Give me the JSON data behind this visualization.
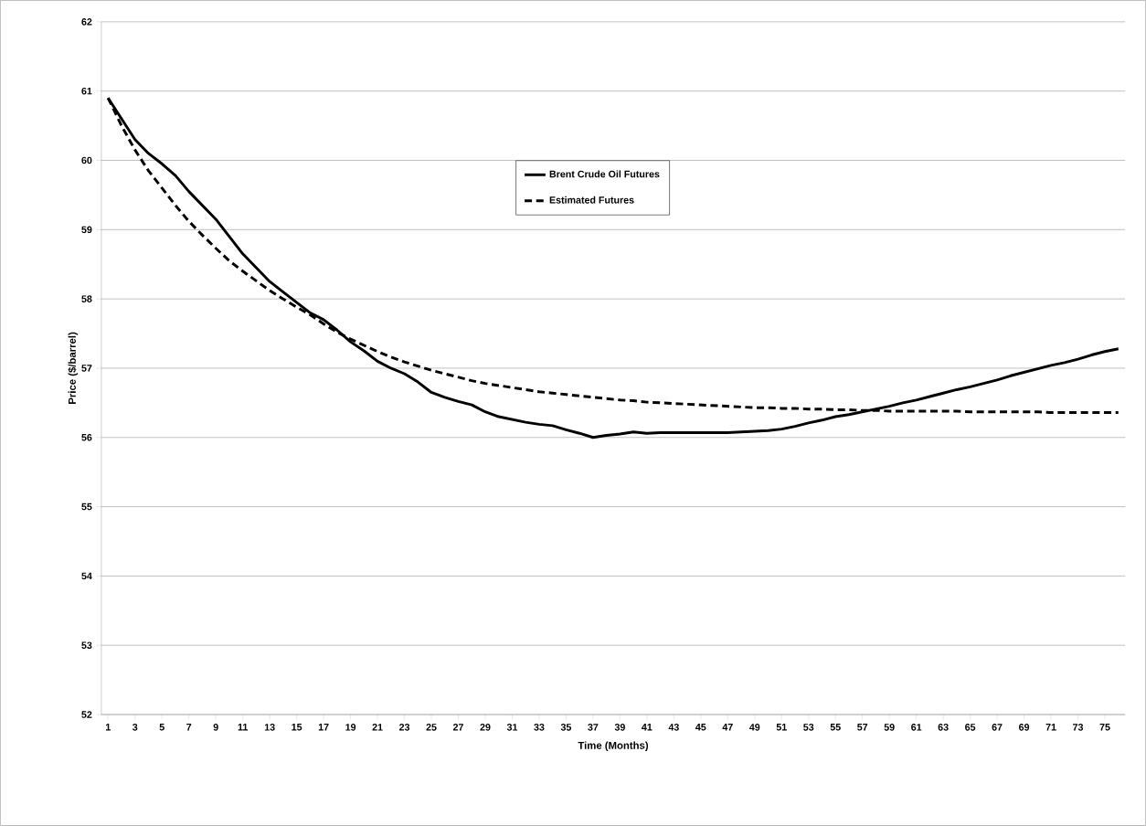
{
  "chart_data": {
    "type": "line",
    "xlabel": "Time (Months)",
    "ylabel": "Price ($/barrel)",
    "x": [
      1,
      2,
      3,
      4,
      5,
      6,
      7,
      8,
      9,
      10,
      11,
      12,
      13,
      14,
      15,
      16,
      17,
      18,
      19,
      20,
      21,
      22,
      23,
      24,
      25,
      26,
      27,
      28,
      29,
      30,
      31,
      32,
      33,
      34,
      35,
      36,
      37,
      38,
      39,
      40,
      41,
      42,
      43,
      44,
      45,
      46,
      47,
      48,
      49,
      50,
      51,
      52,
      53,
      54,
      55,
      56,
      57,
      58,
      59,
      60,
      61,
      62,
      63,
      64,
      65,
      66,
      67,
      68,
      69,
      70,
      71,
      72,
      73,
      74,
      75,
      76
    ],
    "xlim": [
      0.5,
      76.5
    ],
    "xticks": [
      1,
      3,
      5,
      7,
      9,
      11,
      13,
      15,
      17,
      19,
      21,
      23,
      25,
      27,
      29,
      31,
      33,
      35,
      37,
      39,
      41,
      43,
      45,
      47,
      49,
      51,
      53,
      55,
      57,
      59,
      61,
      63,
      65,
      67,
      69,
      71,
      73,
      75
    ],
    "ylim": [
      52,
      62
    ],
    "yticks": [
      52,
      53,
      54,
      55,
      56,
      57,
      58,
      59,
      60,
      61,
      62
    ],
    "grid": "y",
    "legend": "top",
    "series": [
      {
        "name": "Brent Crude  Oil Futures",
        "color": "#000000",
        "line_style": "solid",
        "values": [
          60.9,
          60.6,
          60.3,
          60.1,
          59.95,
          59.78,
          59.55,
          59.35,
          59.15,
          58.9,
          58.65,
          58.45,
          58.25,
          58.1,
          57.95,
          57.8,
          57.7,
          57.55,
          57.38,
          57.25,
          57.1,
          57.0,
          56.92,
          56.8,
          56.65,
          56.58,
          56.52,
          56.47,
          56.37,
          56.3,
          56.26,
          56.22,
          56.19,
          56.17,
          56.11,
          56.06,
          56.0,
          56.03,
          56.05,
          56.08,
          56.06,
          56.07,
          56.07,
          56.07,
          56.07,
          56.07,
          56.07,
          56.08,
          56.09,
          56.1,
          56.12,
          56.16,
          56.21,
          56.25,
          56.3,
          56.33,
          56.37,
          56.41,
          56.45,
          56.5,
          56.54,
          56.59,
          56.64,
          56.69,
          56.73,
          56.78,
          56.83,
          56.89,
          56.94,
          56.99,
          57.04,
          57.08,
          57.13,
          57.19,
          57.24,
          57.28
        ]
      },
      {
        "name": "Estimated Futures",
        "color": "#000000",
        "line_style": "dashed",
        "values": [
          60.9,
          60.5,
          60.15,
          59.85,
          59.6,
          59.35,
          59.12,
          58.92,
          58.73,
          58.55,
          58.4,
          58.26,
          58.12,
          58.0,
          57.88,
          57.77,
          57.64,
          57.52,
          57.42,
          57.33,
          57.24,
          57.16,
          57.09,
          57.03,
          56.97,
          56.92,
          56.87,
          56.82,
          56.78,
          56.75,
          56.72,
          56.69,
          56.66,
          56.64,
          56.62,
          56.6,
          56.58,
          56.56,
          56.54,
          56.53,
          56.51,
          56.5,
          56.49,
          56.48,
          56.47,
          56.46,
          56.45,
          56.44,
          56.43,
          56.43,
          56.42,
          56.42,
          56.41,
          56.41,
          56.4,
          56.4,
          56.39,
          56.39,
          56.38,
          56.38,
          56.38,
          56.38,
          56.38,
          56.38,
          56.37,
          56.37,
          56.37,
          56.37,
          56.37,
          56.37,
          56.36,
          56.36,
          56.36,
          56.36,
          56.36,
          56.36
        ]
      }
    ]
  }
}
